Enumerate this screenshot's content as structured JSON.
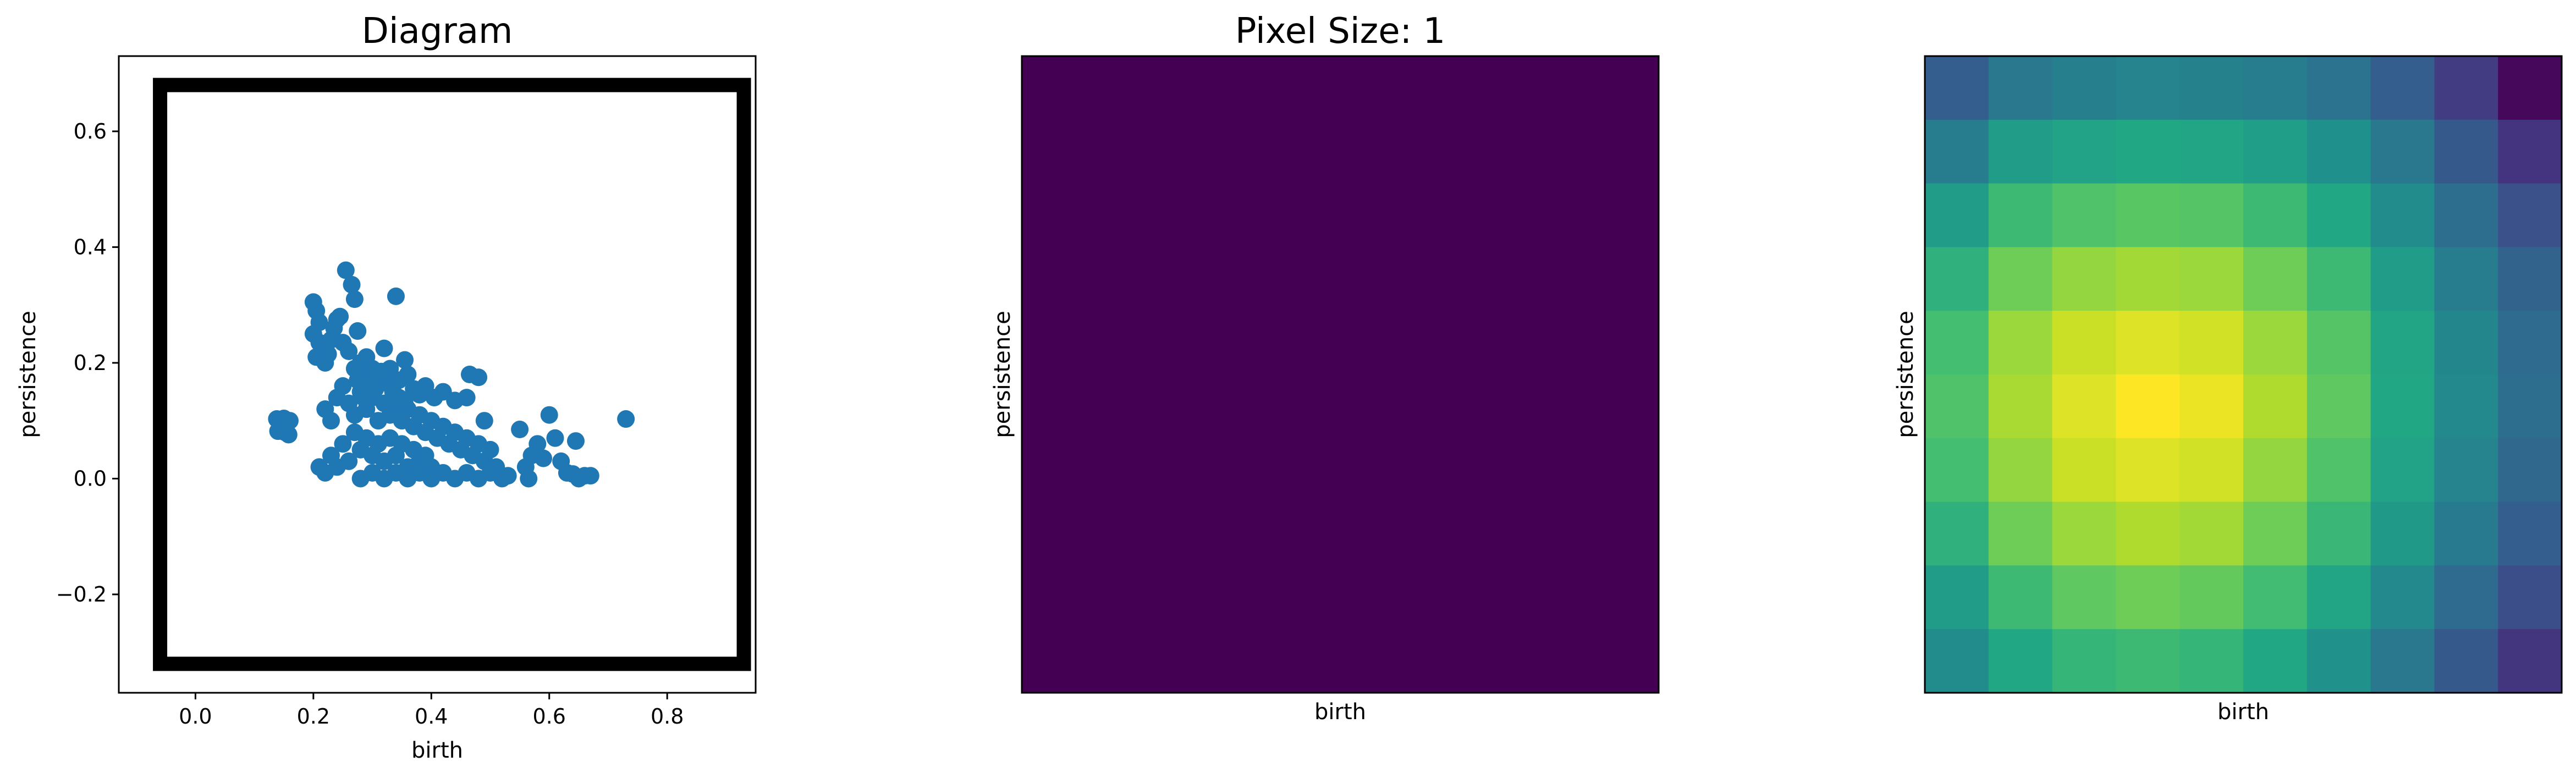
{
  "chart_data": [
    {
      "type": "scatter",
      "title": "Diagram",
      "xlabel": "birth",
      "ylabel": "persistence",
      "xlim": [
        -0.13,
        0.95
      ],
      "ylim": [
        -0.37,
        0.73
      ],
      "xticks": [
        "0.0",
        "0.2",
        "0.4",
        "0.6",
        "0.8"
      ],
      "yticks": [
        "−0.2",
        "0.0",
        "0.2",
        "0.4",
        "0.6"
      ],
      "xtick_values": [
        0.0,
        0.2,
        0.4,
        0.6,
        0.8
      ],
      "ytick_values": [
        -0.2,
        0.0,
        0.2,
        0.4,
        0.6
      ],
      "grid": false,
      "marker_color": "#1f77b4",
      "frame_color": "#000000",
      "frame": {
        "x": [
          -0.06,
          0.93
        ],
        "y": [
          -0.32,
          0.68
        ]
      },
      "points": [
        [
          0.138,
          0.103
        ],
        [
          0.142,
          0.098
        ],
        [
          0.15,
          0.104
        ],
        [
          0.145,
          0.09
        ],
        [
          0.14,
          0.082
        ],
        [
          0.152,
          0.08
        ],
        [
          0.158,
          0.076
        ],
        [
          0.148,
          0.085
        ],
        [
          0.155,
          0.095
        ],
        [
          0.16,
          0.1
        ],
        [
          0.2,
          0.305
        ],
        [
          0.205,
          0.29
        ],
        [
          0.21,
          0.27
        ],
        [
          0.2,
          0.25
        ],
        [
          0.21,
          0.235
        ],
        [
          0.215,
          0.22
        ],
        [
          0.205,
          0.21
        ],
        [
          0.22,
          0.2
        ],
        [
          0.225,
          0.215
        ],
        [
          0.23,
          0.24
        ],
        [
          0.235,
          0.26
        ],
        [
          0.24,
          0.275
        ],
        [
          0.245,
          0.28
        ],
        [
          0.25,
          0.235
        ],
        [
          0.255,
          0.36
        ],
        [
          0.26,
          0.22
        ],
        [
          0.265,
          0.335
        ],
        [
          0.27,
          0.31
        ],
        [
          0.275,
          0.255
        ],
        [
          0.28,
          0.2
        ],
        [
          0.285,
          0.18
        ],
        [
          0.29,
          0.21
        ],
        [
          0.3,
          0.19
        ],
        [
          0.31,
          0.17
        ],
        [
          0.32,
          0.225
        ],
        [
          0.33,
          0.19
        ],
        [
          0.34,
          0.315
        ],
        [
          0.345,
          0.17
        ],
        [
          0.355,
          0.205
        ],
        [
          0.36,
          0.18
        ],
        [
          0.37,
          0.155
        ],
        [
          0.38,
          0.145
        ],
        [
          0.39,
          0.16
        ],
        [
          0.405,
          0.14
        ],
        [
          0.42,
          0.15
        ],
        [
          0.44,
          0.135
        ],
        [
          0.46,
          0.14
        ],
        [
          0.465,
          0.18
        ],
        [
          0.48,
          0.175
        ],
        [
          0.49,
          0.1
        ],
        [
          0.22,
          0.12
        ],
        [
          0.23,
          0.1
        ],
        [
          0.24,
          0.14
        ],
        [
          0.25,
          0.16
        ],
        [
          0.26,
          0.13
        ],
        [
          0.27,
          0.11
        ],
        [
          0.28,
          0.15
        ],
        [
          0.29,
          0.12
        ],
        [
          0.3,
          0.14
        ],
        [
          0.31,
          0.1
        ],
        [
          0.32,
          0.13
        ],
        [
          0.33,
          0.11
        ],
        [
          0.34,
          0.12
        ],
        [
          0.35,
          0.1
        ],
        [
          0.36,
          0.12
        ],
        [
          0.37,
          0.09
        ],
        [
          0.38,
          0.11
        ],
        [
          0.39,
          0.08
        ],
        [
          0.4,
          0.1
        ],
        [
          0.41,
          0.07
        ],
        [
          0.42,
          0.09
        ],
        [
          0.43,
          0.06
        ],
        [
          0.44,
          0.08
        ],
        [
          0.45,
          0.05
        ],
        [
          0.46,
          0.07
        ],
        [
          0.47,
          0.04
        ],
        [
          0.48,
          0.06
        ],
        [
          0.49,
          0.03
        ],
        [
          0.5,
          0.05
        ],
        [
          0.51,
          0.02
        ],
        [
          0.21,
          0.02
        ],
        [
          0.22,
          0.01
        ],
        [
          0.23,
          0.04
        ],
        [
          0.24,
          0.02
        ],
        [
          0.25,
          0.06
        ],
        [
          0.26,
          0.03
        ],
        [
          0.27,
          0.08
        ],
        [
          0.28,
          0.05
        ],
        [
          0.29,
          0.07
        ],
        [
          0.3,
          0.04
        ],
        [
          0.31,
          0.06
        ],
        [
          0.32,
          0.03
        ],
        [
          0.33,
          0.07
        ],
        [
          0.34,
          0.04
        ],
        [
          0.35,
          0.06
        ],
        [
          0.36,
          0.02
        ],
        [
          0.37,
          0.05
        ],
        [
          0.38,
          0.03
        ],
        [
          0.39,
          0.04
        ],
        [
          0.4,
          0.02
        ],
        [
          0.28,
          0.0
        ],
        [
          0.3,
          0.01
        ],
        [
          0.32,
          0.0
        ],
        [
          0.34,
          0.01
        ],
        [
          0.36,
          0.0
        ],
        [
          0.38,
          0.01
        ],
        [
          0.4,
          0.0
        ],
        [
          0.42,
          0.01
        ],
        [
          0.44,
          0.0
        ],
        [
          0.46,
          0.01
        ],
        [
          0.48,
          0.0
        ],
        [
          0.5,
          0.01
        ],
        [
          0.52,
          0.0
        ],
        [
          0.53,
          0.005
        ],
        [
          0.55,
          0.085
        ],
        [
          0.56,
          0.02
        ],
        [
          0.57,
          0.04
        ],
        [
          0.58,
          0.06
        ],
        [
          0.59,
          0.035
        ],
        [
          0.6,
          0.11
        ],
        [
          0.61,
          0.07
        ],
        [
          0.62,
          0.03
        ],
        [
          0.63,
          0.01
        ],
        [
          0.645,
          0.065
        ],
        [
          0.65,
          0.0
        ],
        [
          0.66,
          0.005
        ],
        [
          0.67,
          0.005
        ],
        [
          0.64,
          0.008
        ],
        [
          0.73,
          0.103
        ],
        [
          0.565,
          0.0
        ],
        [
          0.27,
          0.19
        ],
        [
          0.275,
          0.17
        ],
        [
          0.285,
          0.14
        ],
        [
          0.295,
          0.165
        ],
        [
          0.305,
          0.155
        ],
        [
          0.315,
          0.185
        ],
        [
          0.325,
          0.165
        ],
        [
          0.335,
          0.15
        ],
        [
          0.345,
          0.14
        ],
        [
          0.355,
          0.13
        ]
      ]
    },
    {
      "type": "heatmap",
      "title": "Pixel Size: 1",
      "xlabel": "birth",
      "ylabel": "persistence",
      "colormap": "viridis",
      "grid_size": [
        1,
        1
      ],
      "values": [
        [
          0.0
        ]
      ]
    },
    {
      "type": "heatmap",
      "title": "",
      "xlabel": "birth",
      "ylabel": "persistence",
      "colormap": "viridis",
      "grid_size": [
        10,
        10
      ],
      "values": [
        [
          0.3,
          0.4,
          0.43,
          0.45,
          0.44,
          0.42,
          0.38,
          0.3,
          0.18,
          0.02
        ],
        [
          0.42,
          0.55,
          0.58,
          0.6,
          0.59,
          0.56,
          0.5,
          0.4,
          0.28,
          0.15
        ],
        [
          0.55,
          0.68,
          0.72,
          0.74,
          0.73,
          0.68,
          0.6,
          0.48,
          0.36,
          0.25
        ],
        [
          0.64,
          0.78,
          0.84,
          0.86,
          0.85,
          0.78,
          0.68,
          0.55,
          0.42,
          0.32
        ],
        [
          0.7,
          0.85,
          0.92,
          0.95,
          0.93,
          0.85,
          0.73,
          0.59,
          0.46,
          0.35
        ],
        [
          0.72,
          0.87,
          0.95,
          1.0,
          0.97,
          0.88,
          0.75,
          0.6,
          0.47,
          0.36
        ],
        [
          0.7,
          0.84,
          0.92,
          0.95,
          0.93,
          0.84,
          0.72,
          0.58,
          0.45,
          0.34
        ],
        [
          0.64,
          0.78,
          0.85,
          0.88,
          0.86,
          0.78,
          0.67,
          0.54,
          0.41,
          0.3
        ],
        [
          0.55,
          0.68,
          0.75,
          0.78,
          0.76,
          0.69,
          0.59,
          0.47,
          0.35,
          0.24
        ],
        [
          0.48,
          0.6,
          0.66,
          0.68,
          0.66,
          0.6,
          0.51,
          0.4,
          0.28,
          0.16
        ]
      ]
    }
  ]
}
